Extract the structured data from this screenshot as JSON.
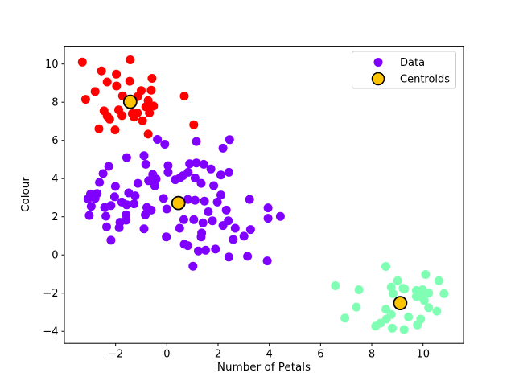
{
  "figure": {
    "background": "#ffffff"
  },
  "chart_data": {
    "type": "scatter",
    "title": "",
    "xlabel": "Number of Petals",
    "ylabel": "Colour",
    "xlim": [
      -4.0,
      11.58
    ],
    "ylim": [
      -4.63,
      10.93
    ],
    "x_ticks": [
      -2,
      0,
      2,
      4,
      6,
      8,
      10
    ],
    "y_ticks": [
      -4,
      -2,
      0,
      2,
      4,
      6,
      8,
      10
    ],
    "grid": false,
    "legend": {
      "position": "upper right",
      "items": [
        {
          "label": "Data",
          "color": "#8000FF",
          "marker": "dot"
        },
        {
          "label": "Centroids",
          "color": "#FFC400",
          "edge_color": "#000000",
          "marker": "circle-outlined"
        }
      ]
    },
    "series": [
      {
        "name": "cluster-red",
        "color": "#FF0000",
        "marker_size": 11,
        "points": [
          [
            -3.3,
            10.1
          ],
          [
            -1.43,
            10.22
          ],
          [
            -2.55,
            9.64
          ],
          [
            -1.97,
            9.47
          ],
          [
            -2.33,
            9.06
          ],
          [
            -1.45,
            9.1
          ],
          [
            -0.58,
            9.25
          ],
          [
            -1.96,
            8.85
          ],
          [
            -2.8,
            8.56
          ],
          [
            -1.0,
            8.61
          ],
          [
            -0.61,
            8.63
          ],
          [
            -3.17,
            8.15
          ],
          [
            0.68,
            8.32
          ],
          [
            -1.73,
            8.33
          ],
          [
            -1.14,
            8.3
          ],
          [
            -0.73,
            8.08
          ],
          [
            -0.82,
            7.76
          ],
          [
            -0.52,
            7.8
          ],
          [
            -2.45,
            7.55
          ],
          [
            -1.88,
            7.6
          ],
          [
            -1.15,
            7.44
          ],
          [
            -0.68,
            7.44
          ],
          [
            -1.35,
            7.4
          ],
          [
            -2.33,
            7.28
          ],
          [
            -2.23,
            7.11
          ],
          [
            -1.75,
            7.3
          ],
          [
            -1.28,
            7.22
          ],
          [
            -0.95,
            7.03
          ],
          [
            -2.65,
            6.61
          ],
          [
            -2.02,
            6.55
          ],
          [
            -0.73,
            6.33
          ],
          [
            1.05,
            6.82
          ]
        ]
      },
      {
        "name": "cluster-purple",
        "color": "#8000FF",
        "marker_size": 11,
        "points": [
          [
            -1.57,
            5.1
          ],
          [
            -0.89,
            5.2
          ],
          [
            -0.37,
            6.05
          ],
          [
            -0.08,
            5.8
          ],
          [
            -2.27,
            4.64
          ],
          [
            -0.82,
            4.75
          ],
          [
            0.05,
            4.68
          ],
          [
            -2.49,
            4.26
          ],
          [
            -0.55,
            4.22
          ],
          [
            0.05,
            4.33
          ],
          [
            0.52,
            4.05
          ],
          [
            0.63,
            4.15
          ],
          [
            -2.63,
            3.8
          ],
          [
            -2.01,
            3.59
          ],
          [
            -1.13,
            3.75
          ],
          [
            -0.71,
            3.89
          ],
          [
            -0.42,
            3.98
          ],
          [
            -0.47,
            3.62
          ],
          [
            0.33,
            3.94
          ],
          [
            -2.98,
            3.19
          ],
          [
            -2.72,
            3.22
          ],
          [
            -3.08,
            2.94
          ],
          [
            -2.8,
            2.96
          ],
          [
            -2.04,
            3.05
          ],
          [
            -1.49,
            3.25
          ],
          [
            -1.24,
            3.1
          ],
          [
            -0.13,
            2.96
          ],
          [
            -2.95,
            2.55
          ],
          [
            -2.43,
            2.49
          ],
          [
            -2.18,
            2.59
          ],
          [
            -1.76,
            2.77
          ],
          [
            -1.57,
            2.63
          ],
          [
            -1.28,
            2.68
          ],
          [
            -0.78,
            2.49
          ],
          [
            -0.61,
            2.35
          ],
          [
            0.0,
            2.41
          ],
          [
            -3.03,
            2.07
          ],
          [
            -2.38,
            2.03
          ],
          [
            -1.59,
            2.1
          ],
          [
            -0.84,
            2.1
          ],
          [
            1.15,
            5.94
          ],
          [
            2.45,
            6.04
          ],
          [
            2.19,
            5.59
          ],
          [
            0.89,
            4.78
          ],
          [
            1.15,
            4.82
          ],
          [
            1.44,
            4.75
          ],
          [
            1.72,
            4.5
          ],
          [
            0.83,
            4.33
          ],
          [
            1.1,
            4.03
          ],
          [
            1.34,
            3.75
          ],
          [
            2.11,
            4.19
          ],
          [
            2.42,
            4.33
          ],
          [
            1.83,
            3.63
          ],
          [
            2.11,
            3.14
          ],
          [
            0.82,
            2.91
          ],
          [
            1.1,
            2.87
          ],
          [
            1.47,
            2.82
          ],
          [
            1.97,
            2.77
          ],
          [
            3.23,
            2.91
          ],
          [
            3.95,
            2.47
          ],
          [
            1.62,
            2.26
          ],
          [
            2.32,
            2.35
          ],
          [
            3.95,
            1.92
          ],
          [
            4.43,
            2.02
          ],
          [
            -2.35,
            1.47
          ],
          [
            -1.86,
            1.43
          ],
          [
            -1.83,
            1.71
          ],
          [
            -1.59,
            1.82
          ],
          [
            -2.18,
            0.77
          ],
          [
            -0.89,
            1.37
          ],
          [
            -0.02,
            0.95
          ],
          [
            0.5,
            1.4
          ],
          [
            0.66,
            1.85
          ],
          [
            0.68,
            0.56
          ],
          [
            1.05,
            1.85
          ],
          [
            1.41,
            1.68
          ],
          [
            1.78,
            1.79
          ],
          [
            2.19,
            1.54
          ],
          [
            2.4,
            1.79
          ],
          [
            2.67,
            1.4
          ],
          [
            3.27,
            1.33
          ],
          [
            1.34,
            0.95
          ],
          [
            1.36,
            1.15
          ],
          [
            2.59,
            0.81
          ],
          [
            3.01,
            0.98
          ],
          [
            0.82,
            0.49
          ],
          [
            1.23,
            0.21
          ],
          [
            1.51,
            0.25
          ],
          [
            1.9,
            0.31
          ],
          [
            2.42,
            -0.11
          ],
          [
            3.15,
            -0.07
          ],
          [
            3.92,
            -0.31
          ],
          [
            1.02,
            -0.59
          ]
        ]
      },
      {
        "name": "cluster-green",
        "color": "#80FFB4",
        "marker_size": 11,
        "points": [
          [
            8.55,
            -0.6
          ],
          [
            6.58,
            -1.61
          ],
          [
            7.5,
            -1.82
          ],
          [
            7.4,
            -2.73
          ],
          [
            6.95,
            -3.31
          ],
          [
            9.01,
            -1.35
          ],
          [
            8.76,
            -1.68
          ],
          [
            9.22,
            -1.75
          ],
          [
            8.83,
            -2.03
          ],
          [
            10.1,
            -1.02
          ],
          [
            10.62,
            -1.35
          ],
          [
            9.74,
            -1.86
          ],
          [
            9.98,
            -1.82
          ],
          [
            10.22,
            -2.0
          ],
          [
            9.74,
            -2.17
          ],
          [
            9.95,
            -2.19
          ],
          [
            10.82,
            -2.03
          ],
          [
            8.55,
            -2.84
          ],
          [
            8.76,
            -3.12
          ],
          [
            8.57,
            -3.36
          ],
          [
            8.34,
            -3.57
          ],
          [
            8.15,
            -3.73
          ],
          [
            9.43,
            -3.25
          ],
          [
            9.91,
            -3.36
          ],
          [
            10.22,
            -2.76
          ],
          [
            10.54,
            -2.94
          ],
          [
            8.8,
            -3.84
          ],
          [
            9.26,
            -3.91
          ],
          [
            9.78,
            -3.67
          ],
          [
            9.28,
            -1.78
          ],
          [
            10.05,
            -2.38
          ],
          [
            9.8,
            -2.14
          ]
        ]
      }
    ],
    "centroids": {
      "name": "Centroids",
      "color": "#FFC400",
      "edge_color": "#000000",
      "marker_size": 16,
      "points": [
        [
          -1.43,
          8.02
        ],
        [
          0.45,
          2.72
        ],
        [
          9.11,
          -2.52
        ]
      ]
    }
  }
}
